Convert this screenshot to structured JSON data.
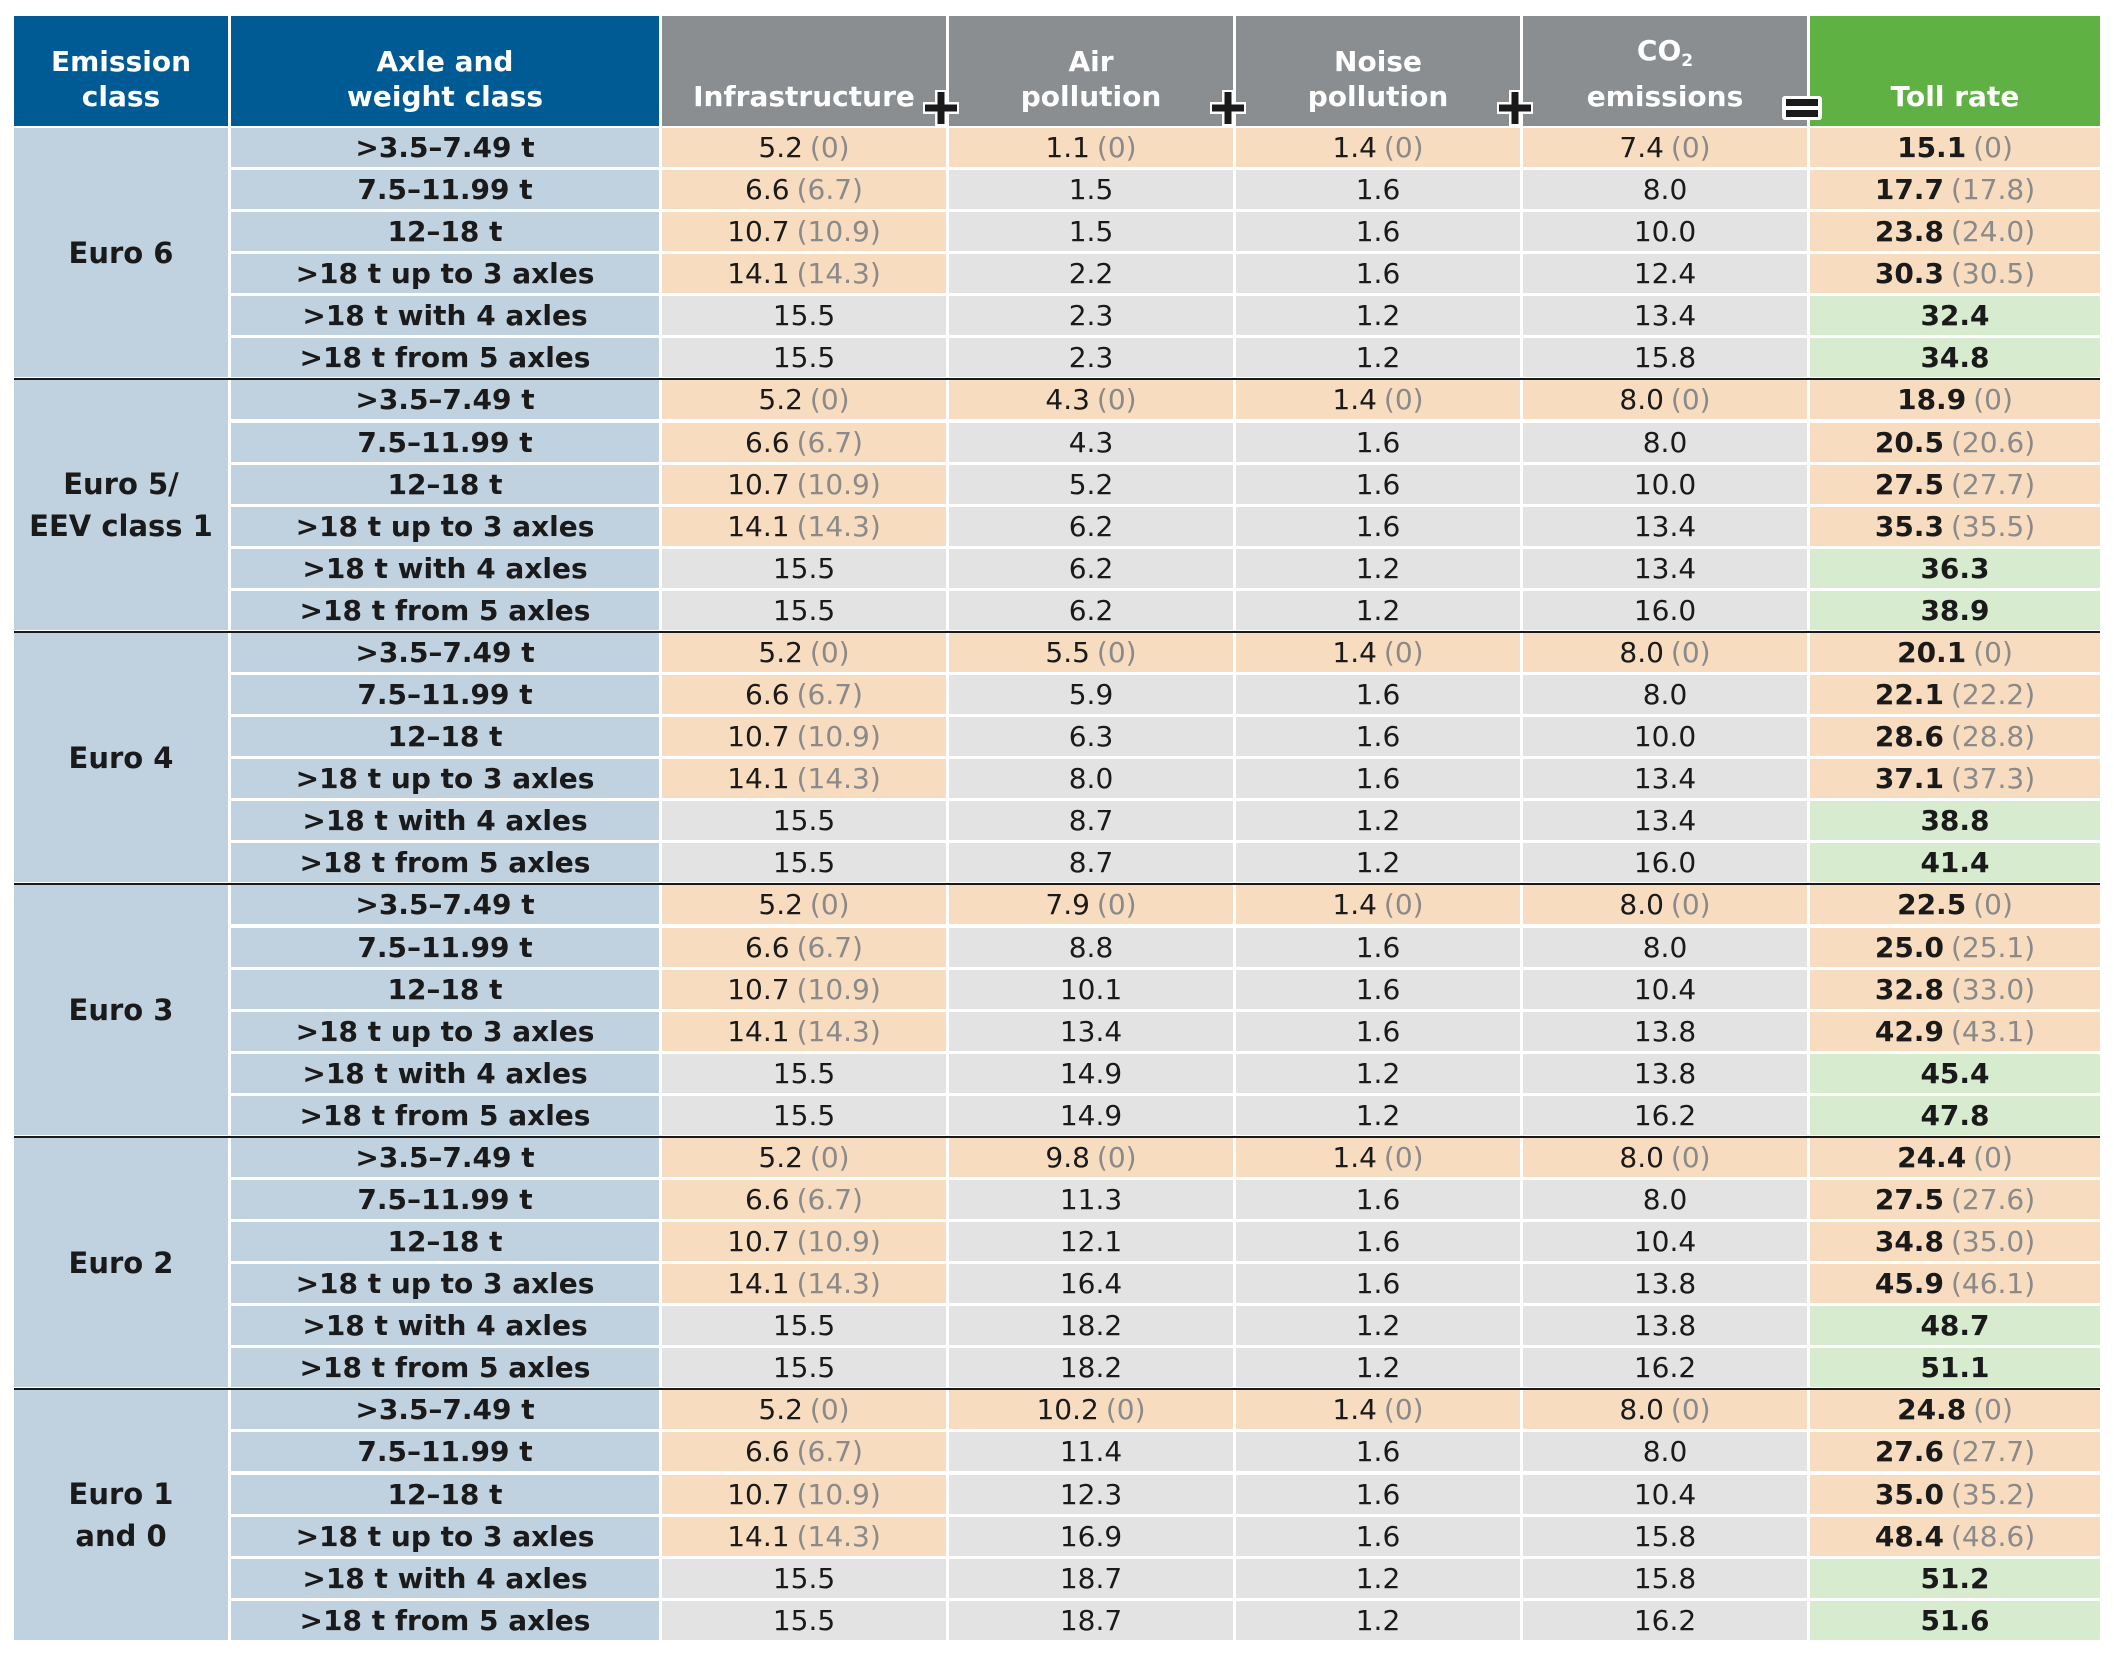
{
  "colors": {
    "header_blue": "#005b94",
    "header_gray": "#8a8e90",
    "header_green": "#5fb144",
    "class_blue": "#c0d1e0",
    "peach": "#f8dcbf",
    "grey": "#e3e3e3",
    "light_green": "#d7ebcf",
    "parenthetical_text": "#8a8a8a"
  },
  "chart_data": {
    "type": "table",
    "columns": [
      {
        "key": "emission_class",
        "lines": [
          "Emission",
          "class"
        ]
      },
      {
        "key": "weight_class",
        "lines": [
          "Axle and",
          "weight class"
        ]
      },
      {
        "key": "infrastructure",
        "lines": [
          "",
          "Infrastructure"
        ]
      },
      {
        "key": "air",
        "lines": [
          "Air",
          "pollution"
        ]
      },
      {
        "key": "noise",
        "lines": [
          "Noise",
          "pollution"
        ]
      },
      {
        "key": "co2",
        "lines": [
          "CO",
          "emissions"
        ],
        "subscript": "2"
      },
      {
        "key": "toll",
        "lines": [
          "",
          "Toll rate"
        ]
      }
    ],
    "operators": [
      "+",
      "+",
      "+",
      "="
    ],
    "groups": [
      {
        "label": [
          "Euro 6"
        ],
        "rows": [
          {
            "weight": ">3.5–7.49 t",
            "infrastructure": {
              "v": "5.2",
              "p": "0"
            },
            "air": {
              "v": "1.1",
              "p": "0"
            },
            "noise": {
              "v": "1.4",
              "p": "0"
            },
            "co2": {
              "v": "7.4",
              "p": "0"
            },
            "toll": {
              "v": "15.1",
              "p": "0"
            }
          },
          {
            "weight": "7.5–11.99 t",
            "infrastructure": {
              "v": "6.6",
              "p": "6.7"
            },
            "air": {
              "v": "1.5"
            },
            "noise": {
              "v": "1.6"
            },
            "co2": {
              "v": "8.0"
            },
            "toll": {
              "v": "17.7",
              "p": "17.8"
            }
          },
          {
            "weight": "12–18 t",
            "infrastructure": {
              "v": "10.7",
              "p": "10.9"
            },
            "air": {
              "v": "1.5"
            },
            "noise": {
              "v": "1.6"
            },
            "co2": {
              "v": "10.0"
            },
            "toll": {
              "v": "23.8",
              "p": "24.0"
            }
          },
          {
            "weight": ">18 t up to 3 axles",
            "infrastructure": {
              "v": "14.1",
              "p": "14.3"
            },
            "air": {
              "v": "2.2"
            },
            "noise": {
              "v": "1.6"
            },
            "co2": {
              "v": "12.4"
            },
            "toll": {
              "v": "30.3",
              "p": "30.5"
            }
          },
          {
            "weight": ">18 t with 4 axles",
            "infrastructure": {
              "v": "15.5"
            },
            "air": {
              "v": "2.3"
            },
            "noise": {
              "v": "1.2"
            },
            "co2": {
              "v": "13.4"
            },
            "toll": {
              "v": "32.4"
            }
          },
          {
            "weight": ">18 t from 5 axles",
            "infrastructure": {
              "v": "15.5"
            },
            "air": {
              "v": "2.3"
            },
            "noise": {
              "v": "1.2"
            },
            "co2": {
              "v": "15.8"
            },
            "toll": {
              "v": "34.8"
            }
          }
        ]
      },
      {
        "label": [
          "Euro 5/",
          "EEV class 1"
        ],
        "rows": [
          {
            "weight": ">3.5–7.49 t",
            "infrastructure": {
              "v": "5.2",
              "p": "0"
            },
            "air": {
              "v": "4.3",
              "p": "0"
            },
            "noise": {
              "v": "1.4",
              "p": "0"
            },
            "co2": {
              "v": "8.0",
              "p": "0"
            },
            "toll": {
              "v": "18.9",
              "p": "0"
            }
          },
          {
            "weight": "7.5–11.99 t",
            "infrastructure": {
              "v": "6.6",
              "p": "6.7"
            },
            "air": {
              "v": "4.3"
            },
            "noise": {
              "v": "1.6"
            },
            "co2": {
              "v": "8.0"
            },
            "toll": {
              "v": "20.5",
              "p": "20.6"
            }
          },
          {
            "weight": "12–18 t",
            "infrastructure": {
              "v": "10.7",
              "p": "10.9"
            },
            "air": {
              "v": "5.2"
            },
            "noise": {
              "v": "1.6"
            },
            "co2": {
              "v": "10.0"
            },
            "toll": {
              "v": "27.5",
              "p": "27.7"
            }
          },
          {
            "weight": ">18 t up to 3 axles",
            "infrastructure": {
              "v": "14.1",
              "p": "14.3"
            },
            "air": {
              "v": "6.2"
            },
            "noise": {
              "v": "1.6"
            },
            "co2": {
              "v": "13.4"
            },
            "toll": {
              "v": "35.3",
              "p": "35.5"
            }
          },
          {
            "weight": ">18 t with 4 axles",
            "infrastructure": {
              "v": "15.5"
            },
            "air": {
              "v": "6.2"
            },
            "noise": {
              "v": "1.2"
            },
            "co2": {
              "v": "13.4"
            },
            "toll": {
              "v": "36.3"
            }
          },
          {
            "weight": ">18 t from 5 axles",
            "infrastructure": {
              "v": "15.5"
            },
            "air": {
              "v": "6.2"
            },
            "noise": {
              "v": "1.2"
            },
            "co2": {
              "v": "16.0"
            },
            "toll": {
              "v": "38.9"
            }
          }
        ]
      },
      {
        "label": [
          "Euro 4"
        ],
        "rows": [
          {
            "weight": ">3.5–7.49 t",
            "infrastructure": {
              "v": "5.2",
              "p": "0"
            },
            "air": {
              "v": "5.5",
              "p": "0"
            },
            "noise": {
              "v": "1.4",
              "p": "0"
            },
            "co2": {
              "v": "8.0",
              "p": "0"
            },
            "toll": {
              "v": "20.1",
              "p": "0"
            }
          },
          {
            "weight": "7.5–11.99 t",
            "infrastructure": {
              "v": "6.6",
              "p": "6.7"
            },
            "air": {
              "v": "5.9"
            },
            "noise": {
              "v": "1.6"
            },
            "co2": {
              "v": "8.0"
            },
            "toll": {
              "v": "22.1",
              "p": "22.2"
            }
          },
          {
            "weight": "12–18 t",
            "infrastructure": {
              "v": "10.7",
              "p": "10.9"
            },
            "air": {
              "v": "6.3"
            },
            "noise": {
              "v": "1.6"
            },
            "co2": {
              "v": "10.0"
            },
            "toll": {
              "v": "28.6",
              "p": "28.8"
            }
          },
          {
            "weight": ">18 t up to 3 axles",
            "infrastructure": {
              "v": "14.1",
              "p": "14.3"
            },
            "air": {
              "v": "8.0"
            },
            "noise": {
              "v": "1.6"
            },
            "co2": {
              "v": "13.4"
            },
            "toll": {
              "v": "37.1",
              "p": "37.3"
            }
          },
          {
            "weight": ">18 t with 4 axles",
            "infrastructure": {
              "v": "15.5"
            },
            "air": {
              "v": "8.7"
            },
            "noise": {
              "v": "1.2"
            },
            "co2": {
              "v": "13.4"
            },
            "toll": {
              "v": "38.8"
            }
          },
          {
            "weight": ">18 t from 5 axles",
            "infrastructure": {
              "v": "15.5"
            },
            "air": {
              "v": "8.7"
            },
            "noise": {
              "v": "1.2"
            },
            "co2": {
              "v": "16.0"
            },
            "toll": {
              "v": "41.4"
            }
          }
        ]
      },
      {
        "label": [
          "Euro 3"
        ],
        "rows": [
          {
            "weight": ">3.5–7.49 t",
            "infrastructure": {
              "v": "5.2",
              "p": "0"
            },
            "air": {
              "v": "7.9",
              "p": "0"
            },
            "noise": {
              "v": "1.4",
              "p": "0"
            },
            "co2": {
              "v": "8.0",
              "p": "0"
            },
            "toll": {
              "v": "22.5",
              "p": "0"
            }
          },
          {
            "weight": "7.5–11.99 t",
            "infrastructure": {
              "v": "6.6",
              "p": "6.7"
            },
            "air": {
              "v": "8.8"
            },
            "noise": {
              "v": "1.6"
            },
            "co2": {
              "v": "8.0"
            },
            "toll": {
              "v": "25.0",
              "p": "25.1"
            }
          },
          {
            "weight": "12–18 t",
            "infrastructure": {
              "v": "10.7",
              "p": "10.9"
            },
            "air": {
              "v": "10.1"
            },
            "noise": {
              "v": "1.6"
            },
            "co2": {
              "v": "10.4"
            },
            "toll": {
              "v": "32.8",
              "p": "33.0"
            }
          },
          {
            "weight": ">18 t up to 3 axles",
            "infrastructure": {
              "v": "14.1",
              "p": "14.3"
            },
            "air": {
              "v": "13.4"
            },
            "noise": {
              "v": "1.6"
            },
            "co2": {
              "v": "13.8"
            },
            "toll": {
              "v": "42.9",
              "p": "43.1"
            }
          },
          {
            "weight": ">18 t with 4 axles",
            "infrastructure": {
              "v": "15.5"
            },
            "air": {
              "v": "14.9"
            },
            "noise": {
              "v": "1.2"
            },
            "co2": {
              "v": "13.8"
            },
            "toll": {
              "v": "45.4"
            }
          },
          {
            "weight": ">18 t from 5 axles",
            "infrastructure": {
              "v": "15.5"
            },
            "air": {
              "v": "14.9"
            },
            "noise": {
              "v": "1.2"
            },
            "co2": {
              "v": "16.2"
            },
            "toll": {
              "v": "47.8"
            }
          }
        ]
      },
      {
        "label": [
          "Euro 2"
        ],
        "rows": [
          {
            "weight": ">3.5–7.49 t",
            "infrastructure": {
              "v": "5.2",
              "p": "0"
            },
            "air": {
              "v": "9.8",
              "p": "0"
            },
            "noise": {
              "v": "1.4",
              "p": "0"
            },
            "co2": {
              "v": "8.0",
              "p": "0"
            },
            "toll": {
              "v": "24.4",
              "p": "0"
            }
          },
          {
            "weight": "7.5–11.99 t",
            "infrastructure": {
              "v": "6.6",
              "p": "6.7"
            },
            "air": {
              "v": "11.3"
            },
            "noise": {
              "v": "1.6"
            },
            "co2": {
              "v": "8.0"
            },
            "toll": {
              "v": "27.5",
              "p": "27.6"
            }
          },
          {
            "weight": "12–18 t",
            "infrastructure": {
              "v": "10.7",
              "p": "10.9"
            },
            "air": {
              "v": "12.1"
            },
            "noise": {
              "v": "1.6"
            },
            "co2": {
              "v": "10.4"
            },
            "toll": {
              "v": "34.8",
              "p": "35.0"
            }
          },
          {
            "weight": ">18 t up to 3 axles",
            "infrastructure": {
              "v": "14.1",
              "p": "14.3"
            },
            "air": {
              "v": "16.4"
            },
            "noise": {
              "v": "1.6"
            },
            "co2": {
              "v": "13.8"
            },
            "toll": {
              "v": "45.9",
              "p": "46.1"
            }
          },
          {
            "weight": ">18 t with 4 axles",
            "infrastructure": {
              "v": "15.5"
            },
            "air": {
              "v": "18.2"
            },
            "noise": {
              "v": "1.2"
            },
            "co2": {
              "v": "13.8"
            },
            "toll": {
              "v": "48.7"
            }
          },
          {
            "weight": ">18 t from 5 axles",
            "infrastructure": {
              "v": "15.5"
            },
            "air": {
              "v": "18.2"
            },
            "noise": {
              "v": "1.2"
            },
            "co2": {
              "v": "16.2"
            },
            "toll": {
              "v": "51.1"
            }
          }
        ]
      },
      {
        "label": [
          "Euro 1",
          "and 0"
        ],
        "rows": [
          {
            "weight": ">3.5–7.49 t",
            "infrastructure": {
              "v": "5.2",
              "p": "0"
            },
            "air": {
              "v": "10.2",
              "p": "0"
            },
            "noise": {
              "v": "1.4",
              "p": "0"
            },
            "co2": {
              "v": "8.0",
              "p": "0"
            },
            "toll": {
              "v": "24.8",
              "p": "0"
            }
          },
          {
            "weight": "7.5–11.99 t",
            "infrastructure": {
              "v": "6.6",
              "p": "6.7"
            },
            "air": {
              "v": "11.4"
            },
            "noise": {
              "v": "1.6"
            },
            "co2": {
              "v": "8.0"
            },
            "toll": {
              "v": "27.6",
              "p": "27.7"
            }
          },
          {
            "weight": "12–18 t",
            "infrastructure": {
              "v": "10.7",
              "p": "10.9"
            },
            "air": {
              "v": "12.3"
            },
            "noise": {
              "v": "1.6"
            },
            "co2": {
              "v": "10.4"
            },
            "toll": {
              "v": "35.0",
              "p": "35.2"
            }
          },
          {
            "weight": ">18 t up to 3 axles",
            "infrastructure": {
              "v": "14.1",
              "p": "14.3"
            },
            "air": {
              "v": "16.9"
            },
            "noise": {
              "v": "1.6"
            },
            "co2": {
              "v": "15.8"
            },
            "toll": {
              "v": "48.4",
              "p": "48.6"
            }
          },
          {
            "weight": ">18 t with 4 axles",
            "infrastructure": {
              "v": "15.5"
            },
            "air": {
              "v": "18.7"
            },
            "noise": {
              "v": "1.2"
            },
            "co2": {
              "v": "15.8"
            },
            "toll": {
              "v": "51.2"
            }
          },
          {
            "weight": ">18 t from 5 axles",
            "infrastructure": {
              "v": "15.5"
            },
            "air": {
              "v": "18.7"
            },
            "noise": {
              "v": "1.2"
            },
            "co2": {
              "v": "16.2"
            },
            "toll": {
              "v": "51.6"
            }
          }
        ]
      }
    ]
  }
}
